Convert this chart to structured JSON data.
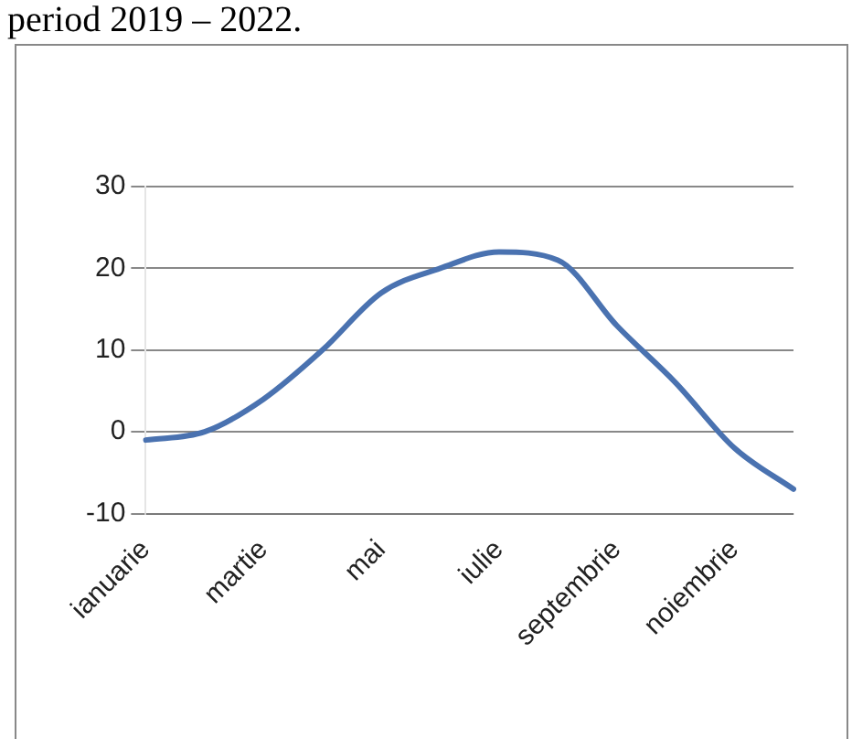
{
  "chart_data": {
    "type": "line",
    "title": "period 2019 – 2022.",
    "categories": [
      "ianuarie",
      null,
      "martie",
      null,
      "mai",
      null,
      "iulie",
      null,
      "septembrie",
      null,
      "noiembrie",
      null
    ],
    "series": [
      {
        "color": "#4a72b0",
        "values": [
          -1,
          0,
          4,
          10,
          17,
          20,
          22,
          21,
          13,
          6,
          -2,
          -7
        ]
      }
    ],
    "ylim": [
      -10,
      30
    ],
    "yticks": [
      -10,
      0,
      10,
      20,
      30
    ],
    "grid": "y",
    "legend": false,
    "marker": "none",
    "line_style": "solid"
  }
}
